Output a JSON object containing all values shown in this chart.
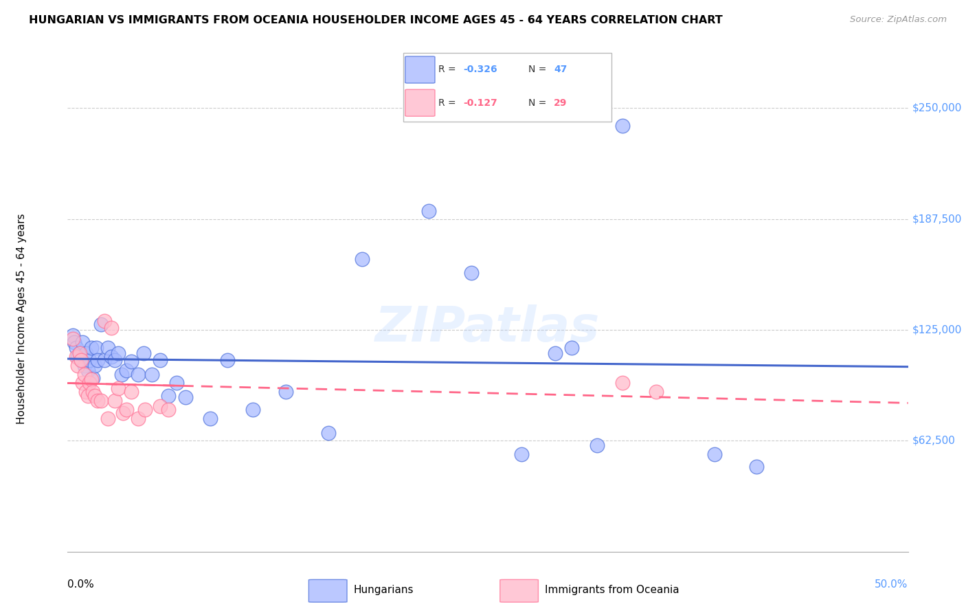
{
  "title": "HUNGARIAN VS IMMIGRANTS FROM OCEANIA HOUSEHOLDER INCOME AGES 45 - 64 YEARS CORRELATION CHART",
  "source": "Source: ZipAtlas.com",
  "ylabel": "Householder Income Ages 45 - 64 years",
  "xlim": [
    0.0,
    0.5
  ],
  "ylim": [
    0,
    262500
  ],
  "yticks": [
    62500,
    125000,
    187500,
    250000
  ],
  "ytick_labels": [
    "$62,500",
    "$125,000",
    "$187,500",
    "$250,000"
  ],
  "blue_R": "-0.326",
  "blue_N": "47",
  "pink_R": "-0.127",
  "pink_N": "29",
  "blue_label": "Hungarians",
  "pink_label": "Immigrants from Oceania",
  "blue_face": "#aabbff",
  "blue_edge": "#5577dd",
  "pink_face": "#ffbbcc",
  "pink_edge": "#ff7799",
  "blue_line": "#4466cc",
  "pink_line": "#ff6688",
  "tick_color": "#5599ff",
  "background_color": "#ffffff",
  "grid_color": "#cccccc",
  "blue_scatter_x": [
    0.003,
    0.004,
    0.005,
    0.006,
    0.007,
    0.008,
    0.009,
    0.01,
    0.011,
    0.012,
    0.013,
    0.014,
    0.015,
    0.016,
    0.017,
    0.018,
    0.02,
    0.022,
    0.024,
    0.026,
    0.028,
    0.03,
    0.032,
    0.035,
    0.038,
    0.042,
    0.045,
    0.05,
    0.055,
    0.06,
    0.065,
    0.07,
    0.085,
    0.095,
    0.11,
    0.13,
    0.155,
    0.175,
    0.215,
    0.24,
    0.27,
    0.29,
    0.315,
    0.385,
    0.41,
    0.33,
    0.3
  ],
  "blue_scatter_y": [
    122000,
    118000,
    115000,
    110000,
    112000,
    108000,
    118000,
    105000,
    112000,
    102000,
    108000,
    115000,
    98000,
    105000,
    115000,
    108000,
    128000,
    108000,
    115000,
    110000,
    108000,
    112000,
    100000,
    102000,
    107000,
    100000,
    112000,
    100000,
    108000,
    88000,
    95000,
    87000,
    75000,
    108000,
    80000,
    90000,
    67000,
    165000,
    192000,
    157000,
    55000,
    112000,
    60000,
    55000,
    48000,
    240000,
    115000
  ],
  "pink_scatter_x": [
    0.003,
    0.005,
    0.006,
    0.007,
    0.008,
    0.009,
    0.01,
    0.011,
    0.012,
    0.013,
    0.014,
    0.015,
    0.016,
    0.018,
    0.02,
    0.022,
    0.024,
    0.026,
    0.028,
    0.03,
    0.033,
    0.035,
    0.038,
    0.042,
    0.046,
    0.055,
    0.06,
    0.33,
    0.35
  ],
  "pink_scatter_y": [
    120000,
    110000,
    105000,
    112000,
    108000,
    95000,
    100000,
    90000,
    88000,
    95000,
    97000,
    90000,
    88000,
    85000,
    85000,
    130000,
    75000,
    126000,
    85000,
    92000,
    78000,
    80000,
    90000,
    75000,
    80000,
    82000,
    80000,
    95000,
    90000
  ]
}
